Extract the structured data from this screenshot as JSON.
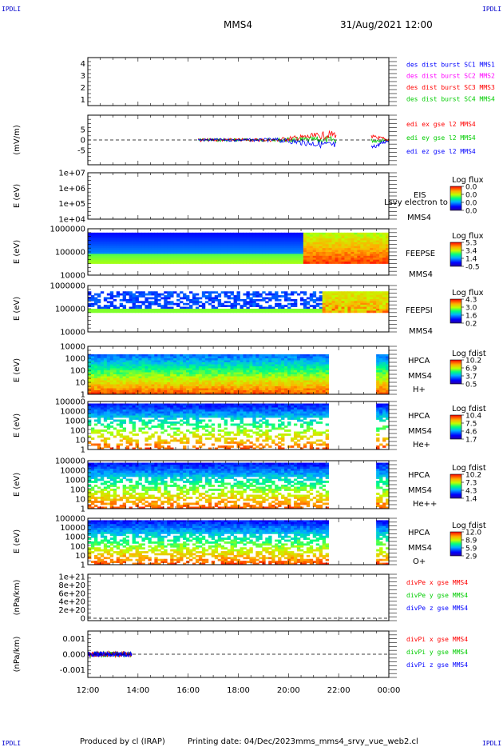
{
  "corner_tags": {
    "tl": "IPDLI",
    "tr": "IPDLI",
    "bl": "IPDLI",
    "br": "IPDLI"
  },
  "header": {
    "spacecraft": "MMS4",
    "datetime": "31/Aug/2021 12:00"
  },
  "footer": {
    "produced": "Produced by cl (IRAP)",
    "printing": "Printing date: 04/Dec/2023",
    "file": "mms_mms4_srvy_vue_web2.cl"
  },
  "colors": {
    "blue": "#0000ff",
    "magenta": "#ff00ff",
    "red": "#ff0000",
    "green": "#00cc00"
  },
  "time_axis": {
    "ticks": [
      "12:00",
      "14:00",
      "16:00",
      "18:00",
      "20:00",
      "22:00",
      "00:00"
    ]
  },
  "chart_data": [
    {
      "type": "line",
      "title": "",
      "ylabel": "",
      "ylim": [
        0.5,
        4.5
      ],
      "yticks": [
        "1",
        "2",
        "3",
        "4"
      ],
      "legend": [
        "des dist burst SC1 MMS1",
        "des dist burst SC2 MMS2",
        "des dist burst SC3 MMS3",
        "des dist burst SC4 MMS4"
      ],
      "legend_colors": [
        "#0000ff",
        "#ff00ff",
        "#ff0000",
        "#00cc00"
      ]
    },
    {
      "type": "line",
      "ylabel": "(mV/m)",
      "ylim": [
        -10,
        10
      ],
      "yticks": [
        "5",
        "0",
        "-5"
      ],
      "legend": [
        "edi ex gse l2 MMS4",
        "edi ey gse l2 MMS4",
        "edi ez gse l2 MMS4"
      ],
      "legend_colors": [
        "#ff0000",
        "#00cc00",
        "#0000ff"
      ],
      "data_time_range_hours": [
        16.4,
        21.9
      ],
      "data_time_range_2_hours": [
        23.3,
        24.0
      ]
    },
    {
      "type": "heatmap",
      "ylabel": "E (eV)",
      "yticks": [
        "1e+07",
        "1e+06",
        "1e+05",
        "1e+04"
      ],
      "right_labels": [
        "EIS",
        "MMS4"
      ],
      "overlap_label": "Lsvy electron to",
      "colorbar_title": "Log flux",
      "colorbar_ticks": [
        "0.0",
        "0.0",
        "0.0",
        "0.0"
      ]
    },
    {
      "type": "heatmap",
      "ylabel": "E (eV)",
      "yticks": [
        "1000000",
        "100000",
        "10000"
      ],
      "right_labels": [
        "FEEPSE",
        "MMS4"
      ],
      "colorbar_title": "Log flux",
      "colorbar_ticks": [
        "5.3",
        "3.4",
        "1.4",
        "-0.5"
      ]
    },
    {
      "type": "heatmap",
      "ylabel": "E (eV)",
      "yticks": [
        "1000000",
        "100000",
        "10000"
      ],
      "right_labels": [
        "FEEPSI",
        "MMS4"
      ],
      "colorbar_title": "Log flux",
      "colorbar_ticks": [
        "4.3",
        "3.0",
        "1.6",
        "0.2"
      ]
    },
    {
      "type": "heatmap",
      "ylabel": "E (eV)",
      "yticks": [
        "10000",
        "1000",
        "100",
        "10",
        "1"
      ],
      "right_labels": [
        "HPCA",
        "MMS4",
        "H+"
      ],
      "colorbar_title": "Log fdist",
      "colorbar_ticks": [
        "10.2",
        "6.9",
        "3.7",
        "0.5"
      ]
    },
    {
      "type": "heatmap",
      "ylabel": "E (eV)",
      "yticks": [
        "100000",
        "10000",
        "1000",
        "100",
        "10",
        "1"
      ],
      "right_labels": [
        "HPCA",
        "MMS4",
        "He+"
      ],
      "colorbar_title": "Log fdist",
      "colorbar_ticks": [
        "10.4",
        "7.5",
        "4.6",
        "1.7"
      ]
    },
    {
      "type": "heatmap",
      "ylabel": "E (eV)",
      "yticks": [
        "100000",
        "10000",
        "1000",
        "100",
        "10",
        "1"
      ],
      "right_labels": [
        "HPCA",
        "MMS4",
        "He++"
      ],
      "colorbar_title": "Log fdist",
      "colorbar_ticks": [
        "10.2",
        "7.3",
        "4.3",
        "1.4"
      ]
    },
    {
      "type": "heatmap",
      "ylabel": "E (eV)",
      "yticks": [
        "100000",
        "10000",
        "1000",
        "100",
        "10",
        "1"
      ],
      "right_labels": [
        "HPCA",
        "MMS4",
        "O+"
      ],
      "colorbar_title": "Log fdist",
      "colorbar_ticks": [
        "12.0",
        "8.9",
        "5.9",
        "2.9"
      ]
    },
    {
      "type": "line",
      "ylabel": "(nPa/km)",
      "yticks": [
        "1e+21",
        "8e+20",
        "6e+20",
        "4e+20",
        "2e+20",
        "0"
      ],
      "legend": [
        "divPe x gse MMS4",
        "divPe y gse MMS4",
        "divPe z gse MMS4"
      ],
      "legend_colors": [
        "#ff0000",
        "#00cc00",
        "#0000ff"
      ]
    },
    {
      "type": "line",
      "ylabel": "(nPa/km)",
      "ylim": [
        -0.0015,
        0.0015
      ],
      "yticks": [
        "0.001",
        "0.000",
        "-0.001"
      ],
      "legend": [
        "divPi x gse MMS4",
        "divPi y gse MMS4",
        "divPi z gse MMS4"
      ],
      "legend_colors": [
        "#ff0000",
        "#00cc00",
        "#0000ff"
      ],
      "data_time_range_hours": [
        12.0,
        13.75
      ]
    }
  ]
}
